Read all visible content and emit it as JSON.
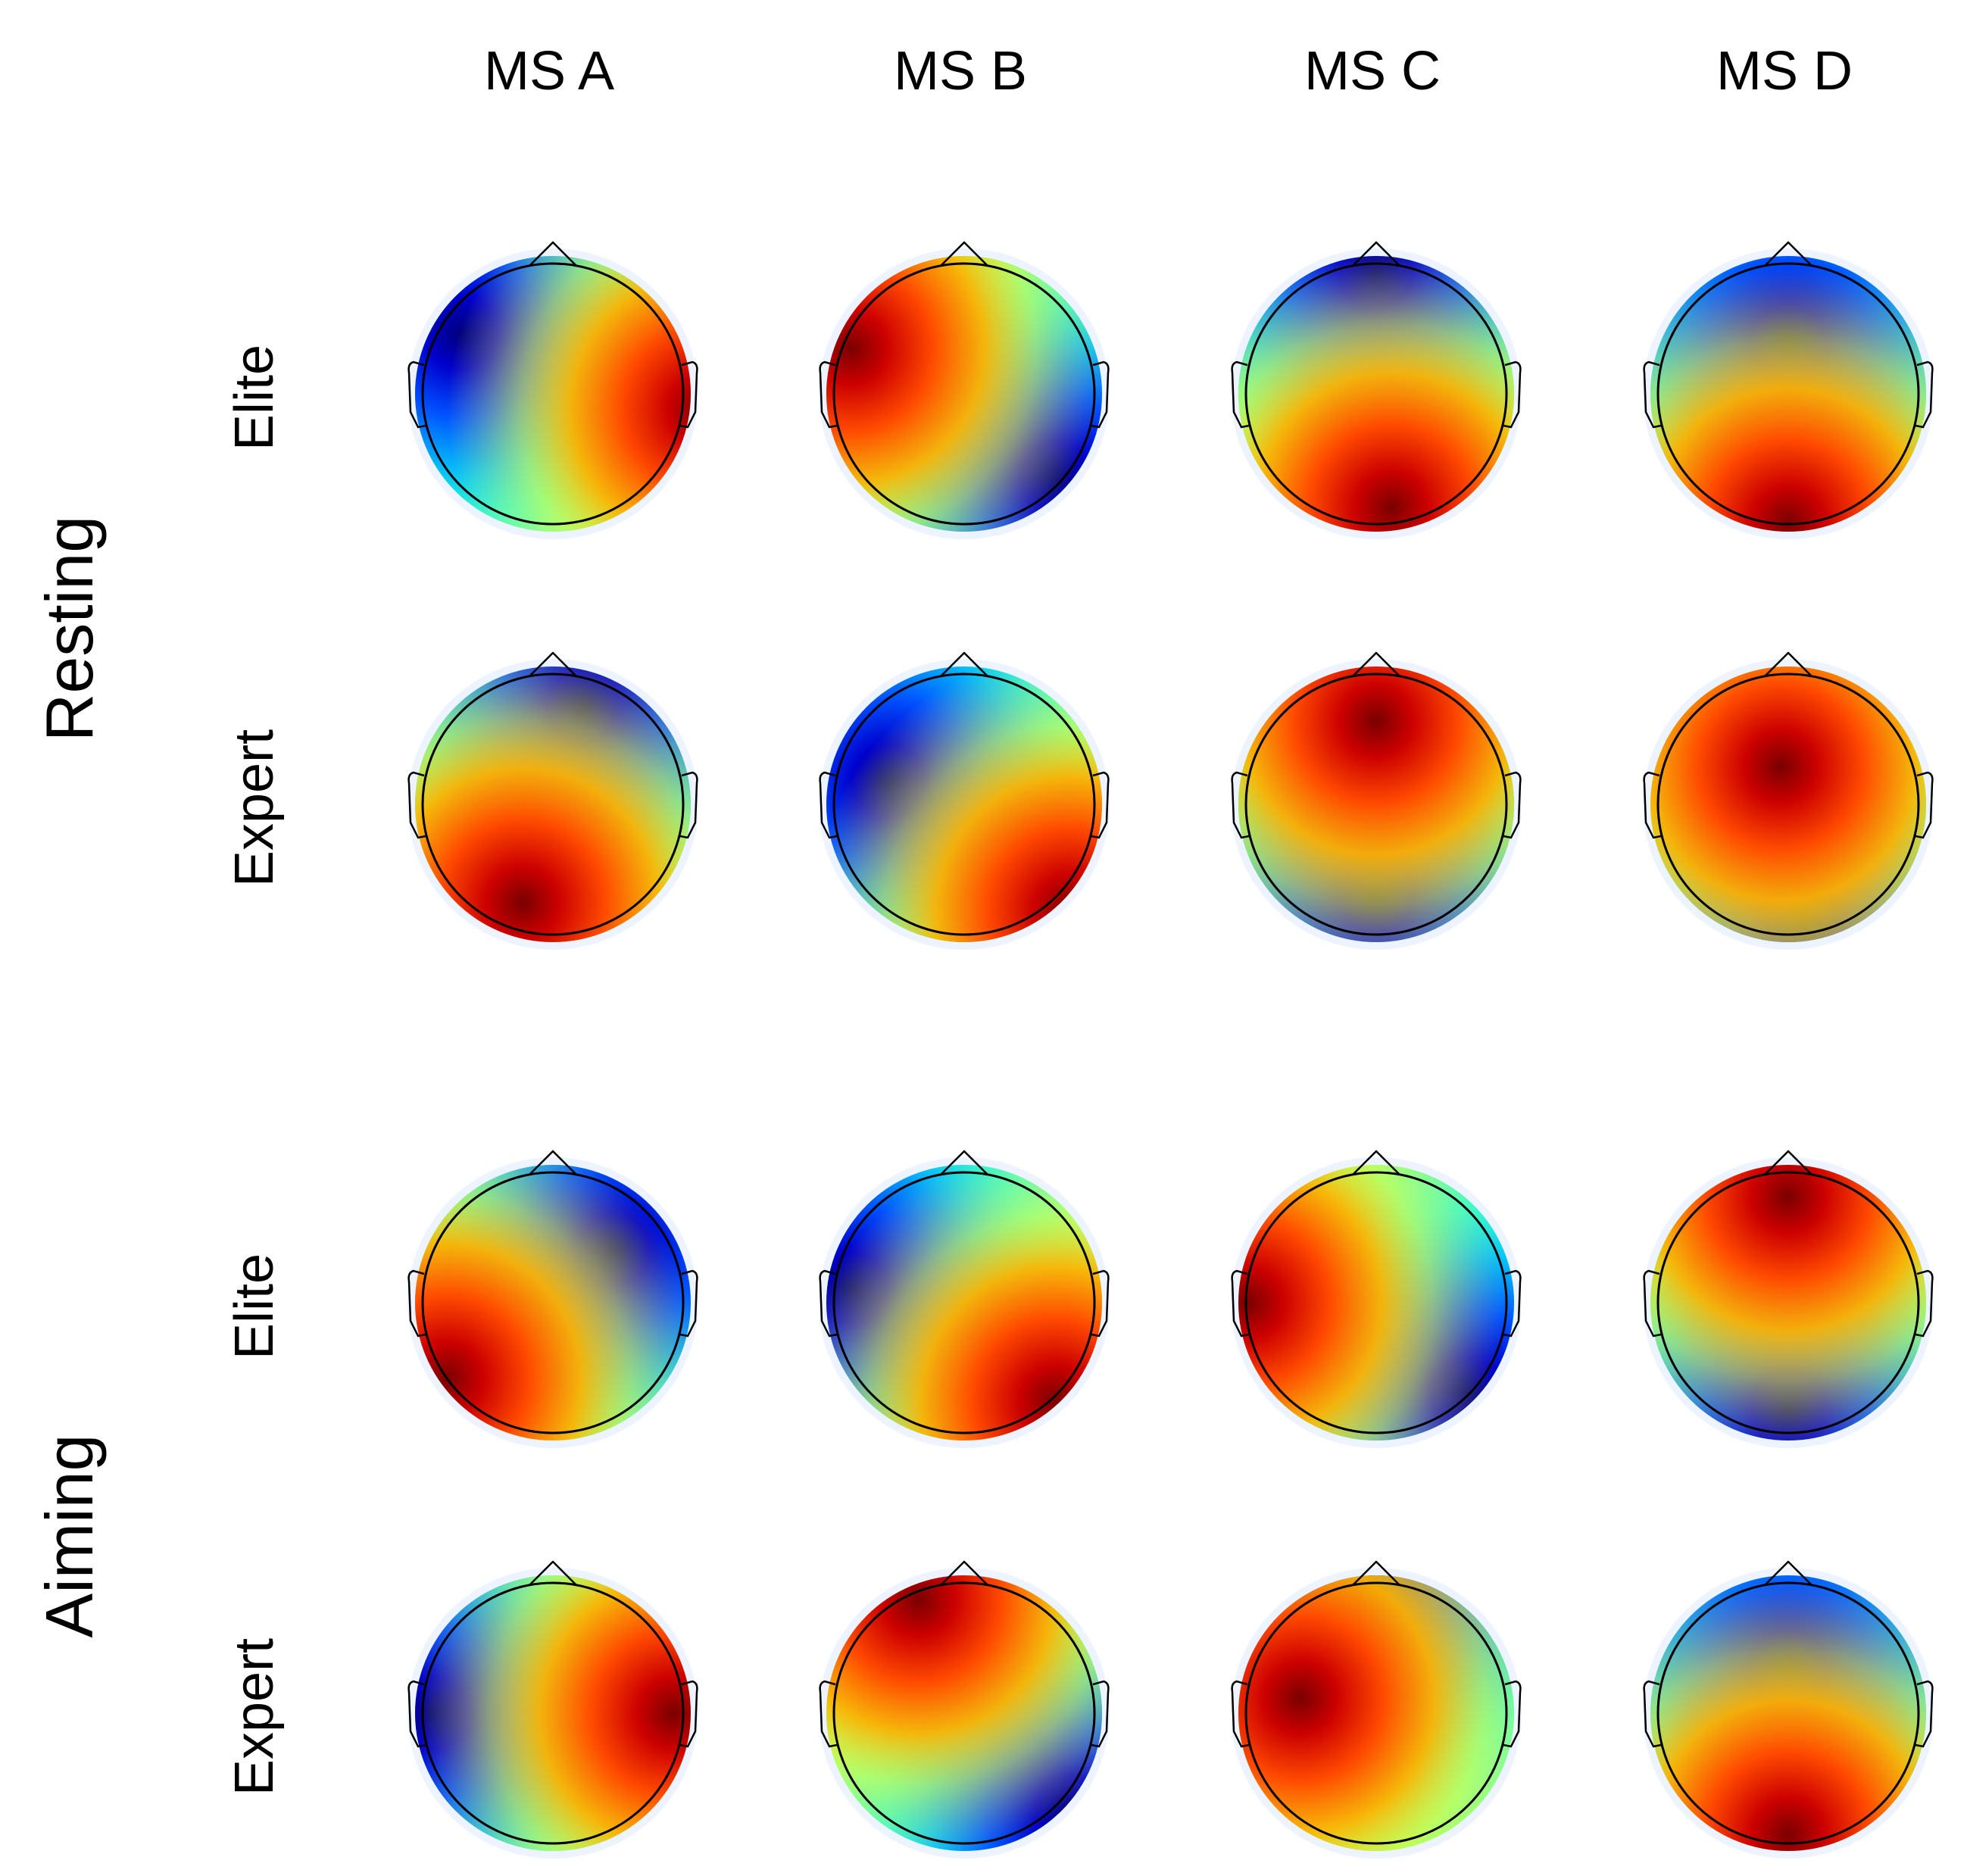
{
  "columns": [
    "MS A",
    "MS B",
    "MS C",
    "MS D"
  ],
  "conditions": [
    {
      "label": "Resting",
      "rows": [
        {
          "label": "Elite",
          "maps": [
            {
              "pos": [
                200,
                20
              ],
              "neg": [
                -120,
                -80
              ]
            },
            {
              "pos": [
                -150,
                -60
              ],
              "neg": [
                120,
                110
              ]
            },
            {
              "pos": [
                20,
                150
              ],
              "neg": [
                0,
                -160
              ]
            },
            {
              "pos": [
                0,
                170
              ],
              "neg": [
                0,
                -70
              ]
            }
          ]
        },
        {
          "label": "Expert",
          "maps": [
            {
              "pos": [
                -40,
                130
              ],
              "neg": [
                40,
                -130
              ]
            },
            {
              "pos": [
                140,
                140
              ],
              "neg": [
                -100,
                -30
              ]
            },
            {
              "pos": [
                0,
                -110
              ],
              "neg": [
                0,
                120
              ]
            },
            {
              "pos": [
                -10,
                -50
              ],
              "neg": [
                20,
                150
              ]
            }
          ]
        }
      ]
    },
    {
      "label": "Aiming",
      "rows": [
        {
          "label": "Elite",
          "maps": [
            {
              "pos": [
                -140,
                100
              ],
              "neg": [
                80,
                -70
              ]
            },
            {
              "pos": [
                120,
                130
              ],
              "neg": [
                -150,
                -20
              ]
            },
            {
              "pos": [
                -170,
                0
              ],
              "neg": [
                120,
                120
              ]
            },
            {
              "pos": [
                0,
                -140
              ],
              "neg": [
                0,
                140
              ]
            }
          ]
        },
        {
          "label": "Expert",
          "maps": [
            {
              "pos": [
                160,
                0
              ],
              "neg": [
                -160,
                0
              ]
            },
            {
              "pos": [
                -60,
                -150
              ],
              "neg": [
                140,
                130
              ]
            },
            {
              "pos": [
                -100,
                -20
              ],
              "neg": [
                0,
                -170
              ]
            },
            {
              "pos": [
                0,
                160
              ],
              "neg": [
                0,
                -60
              ]
            }
          ]
        }
      ]
    }
  ]
}
